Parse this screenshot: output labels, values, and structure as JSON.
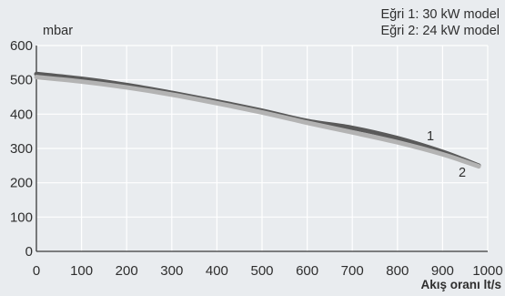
{
  "chart_data": {
    "type": "line",
    "ylabel": "mbar",
    "xlabel": "Akış oranı lt/s",
    "xlim": [
      0,
      1000
    ],
    "ylim": [
      0,
      600
    ],
    "x_ticks": [
      0,
      100,
      200,
      300,
      400,
      500,
      600,
      700,
      800,
      900,
      1000
    ],
    "y_ticks": [
      0,
      100,
      200,
      300,
      400,
      500,
      600
    ],
    "grid": true,
    "legend_lines": [
      "Eğri 1: 30 kW model",
      "Eğri 2: 24 kW model"
    ],
    "series": [
      {
        "name": "1",
        "color": "#5a5a5a",
        "x": [
          0,
          100,
          200,
          300,
          400,
          500,
          600,
          700,
          800,
          900,
          980
        ],
        "y": [
          517,
          503,
          485,
          462,
          437,
          410,
          380,
          360,
          330,
          290,
          250
        ]
      },
      {
        "name": "2",
        "color": "#b3b3b3",
        "x": [
          0,
          100,
          200,
          300,
          400,
          500,
          600,
          700,
          800,
          900,
          980
        ],
        "y": [
          508,
          495,
          478,
          457,
          432,
          405,
          375,
          347,
          318,
          283,
          248
        ]
      }
    ]
  }
}
